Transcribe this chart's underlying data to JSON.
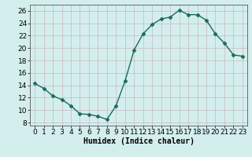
{
  "x": [
    0,
    1,
    2,
    3,
    4,
    5,
    6,
    7,
    8,
    9,
    10,
    11,
    12,
    13,
    14,
    15,
    16,
    17,
    18,
    19,
    20,
    21,
    22,
    23
  ],
  "y": [
    14.3,
    13.5,
    12.3,
    11.7,
    10.7,
    9.4,
    9.3,
    9.0,
    8.5,
    10.7,
    14.7,
    19.7,
    22.3,
    23.8,
    24.7,
    25.0,
    26.1,
    25.4,
    25.4,
    24.5,
    22.3,
    20.8,
    18.9,
    18.7
  ],
  "line_color": "#1a6b5a",
  "marker": "D",
  "markersize": 2.5,
  "linewidth": 1.0,
  "bg_color": "#d4eeee",
  "grid_color": "#b8d8d8",
  "xlabel": "Humidex (Indice chaleur)",
  "xlim": [
    -0.5,
    23.5
  ],
  "ylim": [
    7.5,
    27.0
  ],
  "yticks": [
    8,
    10,
    12,
    14,
    16,
    18,
    20,
    22,
    24,
    26
  ],
  "xticks": [
    0,
    1,
    2,
    3,
    4,
    5,
    6,
    7,
    8,
    9,
    10,
    11,
    12,
    13,
    14,
    15,
    16,
    17,
    18,
    19,
    20,
    21,
    22,
    23
  ],
  "label_fontsize": 7,
  "tick_fontsize": 6.5
}
